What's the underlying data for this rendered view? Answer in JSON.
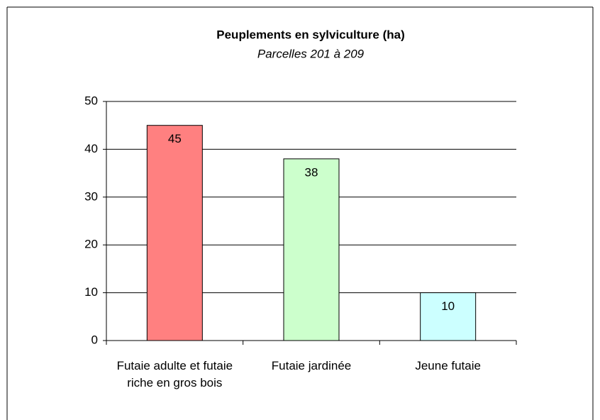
{
  "chart_data": {
    "type": "bar",
    "title": "Peuplements en sylviculture (ha)",
    "subtitle": "Parcelles 201 à 209",
    "categories": [
      "Futaie adulte et futaie riche en gros bois",
      "Futaie jardinée",
      "Jeune futaie"
    ],
    "values": [
      45,
      38,
      10
    ],
    "colors": [
      "#ff8080",
      "#ccffcc",
      "#ccffff"
    ],
    "ylim": [
      0,
      50
    ],
    "yticks": [
      0,
      10,
      20,
      30,
      40,
      50
    ],
    "grid": true
  }
}
